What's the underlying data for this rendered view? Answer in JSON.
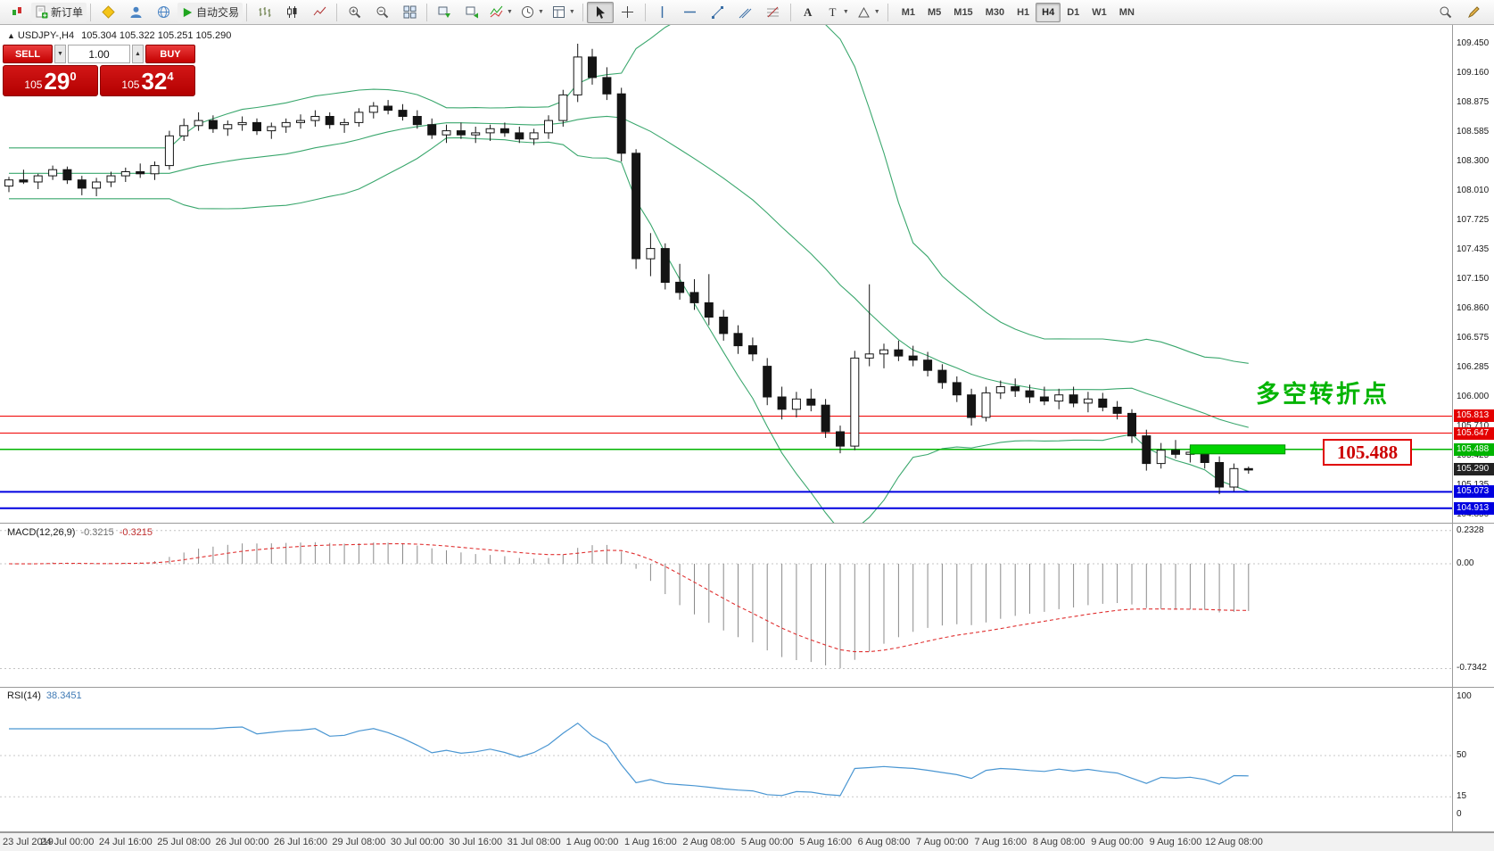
{
  "toolbar": {
    "new_order_label": "新订单",
    "auto_trading_label": "自动交易",
    "timeframes": [
      "M1",
      "M5",
      "M15",
      "M30",
      "H1",
      "H4",
      "D1",
      "W1",
      "MN"
    ],
    "active_timeframe": "H4"
  },
  "chart_header": {
    "symbol": "USDJPY-,H4",
    "ohlc": "105.304 105.322 105.251 105.290"
  },
  "trade_panel": {
    "sell_label": "SELL",
    "buy_label": "BUY",
    "volume": "1.00",
    "sell_price_prefix": "105",
    "sell_price_pips": "29",
    "sell_price_point": "0",
    "buy_price_prefix": "105",
    "buy_price_pips": "32",
    "buy_price_point": "4"
  },
  "annotations": {
    "turning_point_text": "多空转折点",
    "price_callout": "105.488"
  },
  "chart_data": {
    "type": "candlestick",
    "symbol": "USDJPY-",
    "timeframe": "H4",
    "price_range": [
      104.85,
      109.45
    ],
    "price_axis_ticks": [
      "109.450",
      "109.160",
      "108.875",
      "108.585",
      "108.300",
      "108.010",
      "107.725",
      "107.435",
      "107.150",
      "106.860",
      "106.575",
      "106.285",
      "106.000",
      "105.710",
      "105.425",
      "105.135",
      "104.850"
    ],
    "time_labels": [
      "23 Jul 2019",
      "24 Jul 00:00",
      "24 Jul 16:00",
      "25 Jul 08:00",
      "26 Jul 00:00",
      "26 Jul 16:00",
      "29 Jul 08:00",
      "30 Jul 00:00",
      "30 Jul 16:00",
      "31 Jul 08:00",
      "1 Aug 00:00",
      "1 Aug 16:00",
      "2 Aug 08:00",
      "5 Aug 00:00",
      "5 Aug 16:00",
      "6 Aug 08:00",
      "7 Aug 00:00",
      "7 Aug 16:00",
      "8 Aug 08:00",
      "9 Aug 00:00",
      "9 Aug 16:00",
      "12 Aug 08:00"
    ],
    "bollinger": {
      "period": 20,
      "deviation": 2,
      "color": "#3aa76d"
    },
    "horizontal_lines": [
      {
        "price": 105.813,
        "color": "#f00000",
        "width": 1
      },
      {
        "price": 105.647,
        "color": "#f00000",
        "width": 1
      },
      {
        "price": 105.488,
        "color": "#00b400",
        "width": 1.5
      },
      {
        "price": 105.073,
        "color": "#0000e0",
        "width": 2
      },
      {
        "price": 104.913,
        "color": "#0000e0",
        "width": 2
      }
    ],
    "price_tags": [
      {
        "text": "105.813",
        "bg": "#e40000"
      },
      {
        "text": "105.647",
        "bg": "#e40000"
      },
      {
        "text": "105.488",
        "bg": "#00b400"
      },
      {
        "text": "105.290",
        "bg": "#222222"
      },
      {
        "text": "105.073",
        "bg": "#0000e0"
      },
      {
        "text": "104.913",
        "bg": "#0000e0"
      }
    ],
    "highlight_rect": {
      "price": 105.488,
      "from_bar": 81,
      "to_bar": 87.5
    },
    "macd": {
      "label": "MACD(12,26,9)",
      "values": [
        "-0.3215",
        "-0.3215"
      ],
      "scale_ticks": [
        "0.2328",
        "0.00",
        "-0.7342"
      ]
    },
    "rsi": {
      "label": "RSI(14)",
      "value_text": "38.3451",
      "scale_ticks": [
        "100",
        "50",
        "15",
        "0"
      ]
    },
    "candles": [
      [
        108.06,
        108.15,
        108.0,
        108.12
      ],
      [
        108.12,
        108.22,
        108.08,
        108.1
      ],
      [
        108.1,
        108.18,
        108.03,
        108.16
      ],
      [
        108.16,
        108.26,
        108.12,
        108.22
      ],
      [
        108.22,
        108.25,
        108.08,
        108.12
      ],
      [
        108.12,
        108.16,
        107.97,
        108.04
      ],
      [
        108.04,
        108.14,
        107.96,
        108.1
      ],
      [
        108.1,
        108.2,
        108.05,
        108.16
      ],
      [
        108.16,
        108.24,
        108.1,
        108.2
      ],
      [
        108.2,
        108.28,
        108.14,
        108.18
      ],
      [
        108.18,
        108.3,
        108.12,
        108.26
      ],
      [
        108.26,
        108.6,
        108.22,
        108.55
      ],
      [
        108.55,
        108.72,
        108.5,
        108.65
      ],
      [
        108.65,
        108.78,
        108.6,
        108.7
      ],
      [
        108.7,
        108.75,
        108.58,
        108.62
      ],
      [
        108.62,
        108.7,
        108.55,
        108.66
      ],
      [
        108.66,
        108.74,
        108.6,
        108.68
      ],
      [
        108.68,
        108.72,
        108.56,
        108.6
      ],
      [
        108.6,
        108.68,
        108.52,
        108.64
      ],
      [
        108.64,
        108.72,
        108.58,
        108.68
      ],
      [
        108.68,
        108.76,
        108.62,
        108.7
      ],
      [
        108.7,
        108.8,
        108.64,
        108.74
      ],
      [
        108.74,
        108.78,
        108.62,
        108.66
      ],
      [
        108.66,
        108.72,
        108.58,
        108.68
      ],
      [
        108.68,
        108.82,
        108.64,
        108.78
      ],
      [
        108.78,
        108.88,
        108.72,
        108.84
      ],
      [
        108.84,
        108.9,
        108.76,
        108.8
      ],
      [
        108.8,
        108.86,
        108.7,
        108.74
      ],
      [
        108.74,
        108.8,
        108.62,
        108.66
      ],
      [
        108.66,
        108.72,
        108.52,
        108.56
      ],
      [
        108.56,
        108.66,
        108.48,
        108.6
      ],
      [
        108.6,
        108.68,
        108.52,
        108.56
      ],
      [
        108.56,
        108.64,
        108.48,
        108.58
      ],
      [
        108.58,
        108.66,
        108.5,
        108.62
      ],
      [
        108.62,
        108.68,
        108.54,
        108.58
      ],
      [
        108.58,
        108.64,
        108.48,
        108.52
      ],
      [
        108.52,
        108.62,
        108.46,
        108.58
      ],
      [
        108.58,
        108.75,
        108.52,
        108.7
      ],
      [
        108.7,
        109.0,
        108.64,
        108.95
      ],
      [
        108.95,
        109.45,
        108.88,
        109.32
      ],
      [
        109.32,
        109.4,
        109.05,
        109.12
      ],
      [
        109.12,
        109.22,
        108.9,
        108.96
      ],
      [
        108.96,
        109.02,
        108.3,
        108.38
      ],
      [
        108.38,
        108.42,
        107.25,
        107.35
      ],
      [
        107.35,
        107.6,
        107.18,
        107.45
      ],
      [
        107.45,
        107.5,
        107.05,
        107.12
      ],
      [
        107.12,
        107.3,
        106.95,
        107.02
      ],
      [
        107.02,
        107.15,
        106.85,
        106.92
      ],
      [
        106.92,
        107.2,
        106.7,
        106.78
      ],
      [
        106.78,
        106.85,
        106.55,
        106.62
      ],
      [
        106.62,
        106.7,
        106.42,
        106.5
      ],
      [
        106.5,
        106.58,
        106.35,
        106.42
      ],
      [
        106.3,
        106.38,
        105.92,
        106.0
      ],
      [
        106.0,
        106.1,
        105.78,
        105.88
      ],
      [
        105.88,
        106.05,
        105.8,
        105.98
      ],
      [
        105.98,
        106.08,
        105.86,
        105.92
      ],
      [
        105.92,
        105.98,
        105.6,
        105.66
      ],
      [
        105.66,
        105.72,
        105.45,
        105.52
      ],
      [
        105.52,
        106.45,
        105.48,
        106.38
      ],
      [
        106.38,
        107.1,
        106.3,
        106.42
      ],
      [
        106.42,
        106.52,
        106.28,
        106.46
      ],
      [
        106.46,
        106.55,
        106.35,
        106.4
      ],
      [
        106.4,
        106.5,
        106.3,
        106.36
      ],
      [
        106.36,
        106.44,
        106.2,
        106.26
      ],
      [
        106.26,
        106.32,
        106.08,
        106.14
      ],
      [
        106.14,
        106.2,
        105.95,
        106.02
      ],
      [
        106.02,
        106.08,
        105.72,
        105.8
      ],
      [
        105.8,
        106.1,
        105.76,
        106.04
      ],
      [
        106.04,
        106.16,
        105.98,
        106.1
      ],
      [
        106.1,
        106.18,
        106.0,
        106.06
      ],
      [
        106.06,
        106.12,
        105.94,
        106.0
      ],
      [
        106.0,
        106.1,
        105.92,
        105.96
      ],
      [
        105.96,
        106.08,
        105.88,
        106.02
      ],
      [
        106.02,
        106.1,
        105.9,
        105.94
      ],
      [
        105.94,
        106.05,
        105.85,
        105.98
      ],
      [
        105.98,
        106.04,
        105.86,
        105.9
      ],
      [
        105.9,
        105.96,
        105.78,
        105.84
      ],
      [
        105.84,
        105.88,
        105.55,
        105.62
      ],
      [
        105.62,
        105.68,
        105.28,
        105.35
      ],
      [
        105.35,
        105.55,
        105.3,
        105.48
      ],
      [
        105.48,
        105.58,
        105.4,
        105.44
      ],
      [
        105.44,
        105.52,
        105.36,
        105.46
      ],
      [
        105.46,
        105.5,
        105.3,
        105.36
      ],
      [
        105.36,
        105.42,
        105.05,
        105.12
      ],
      [
        105.12,
        105.35,
        105.08,
        105.3
      ],
      [
        105.3,
        105.32,
        105.25,
        105.29
      ]
    ]
  }
}
